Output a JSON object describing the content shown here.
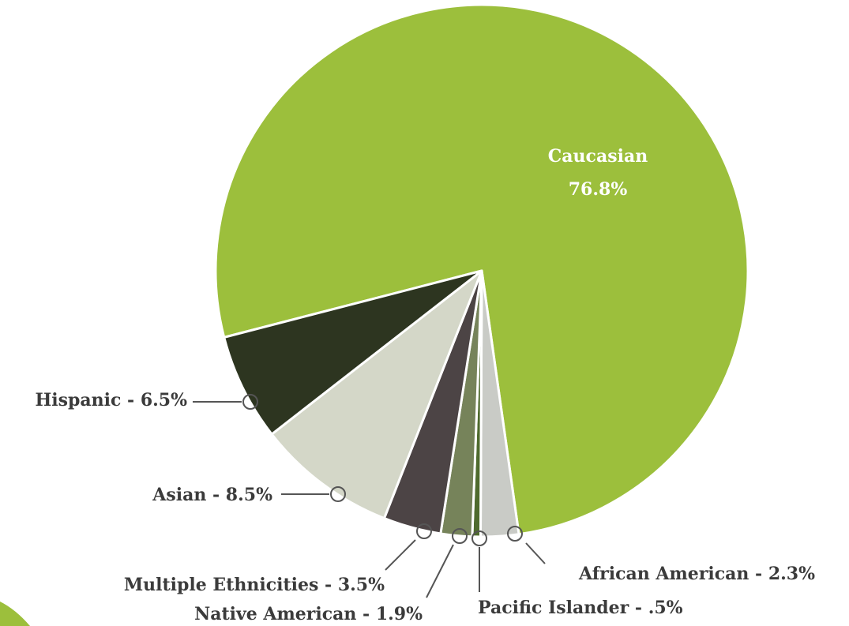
{
  "chart_data": {
    "type": "pie",
    "slices": [
      {
        "name": "Caucasian",
        "value": 76.8,
        "value_label": "76.8%",
        "color": "#9cbf3c"
      },
      {
        "name": "African  American",
        "value": 2.3,
        "value_label": "2.3%",
        "color": "#c9cbc6"
      },
      {
        "name": "Pacific Islander",
        "value": 0.5,
        "value_label": ".5%",
        "color": "#4f6b2e"
      },
      {
        "name": "Native American",
        "value": 1.9,
        "value_label": "1.9%",
        "color": "#76835a"
      },
      {
        "name": "Multiple Ethnicities",
        "value": 3.5,
        "value_label": "3.5%",
        "color": "#4c4445"
      },
      {
        "name": "Asian",
        "value": 8.5,
        "value_label": "8.5%",
        "color": "#d4d7c8"
      },
      {
        "name": "Hispanic",
        "value": 6.5,
        "value_label": "6.5%",
        "color": "#2d3520"
      }
    ]
  },
  "labels": {
    "caucasian_name": "Caucasian",
    "caucasian_value": "76.8%",
    "hispanic": "Hispanic - 6.5%",
    "asian": "Asian - 8.5%",
    "multiple": "Multiple Ethnicities - 3.5%",
    "native": "Native American - 1.9%",
    "pacific": "Pacific Islander - .5%",
    "african": "African  American - 2.3%"
  },
  "colors": {
    "accent_green": "#9cbf3c",
    "label_text": "#3b3b3b",
    "leader_line": "#555555"
  }
}
